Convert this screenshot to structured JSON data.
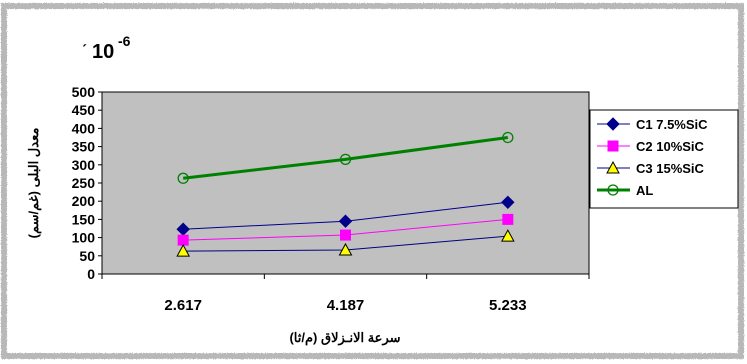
{
  "chart_data": {
    "type": "line",
    "scale_note": "10",
    "scale_exp": "-6",
    "scale_prefix": "ˊ",
    "ylabel": "معدل البلى (غم/سم)",
    "xlabel": "سرعة الانـزلاق (م/ثا)",
    "ylim": [
      0,
      500
    ],
    "yticks": [
      "0",
      "50",
      "100",
      "150",
      "200",
      "250",
      "300",
      "350",
      "400",
      "450",
      "500"
    ],
    "categories": [
      "2.617",
      "4.187",
      "5.233"
    ],
    "legend_position": "right",
    "series": [
      {
        "name": "C1 7.5%SiC",
        "values": [
          123,
          145,
          197
        ],
        "color": "#00008b",
        "marker": "diamond"
      },
      {
        "name": "C2 10%SiC",
        "values": [
          93,
          107,
          150
        ],
        "color": "#ff00ff",
        "marker": "square"
      },
      {
        "name": "C3 15%SiC",
        "values": [
          63,
          66,
          104
        ],
        "color": "#000080",
        "marker": "triangle"
      },
      {
        "name": "AL",
        "values": [
          263,
          315,
          375
        ],
        "color": "#008000",
        "marker": "circle"
      }
    ]
  }
}
